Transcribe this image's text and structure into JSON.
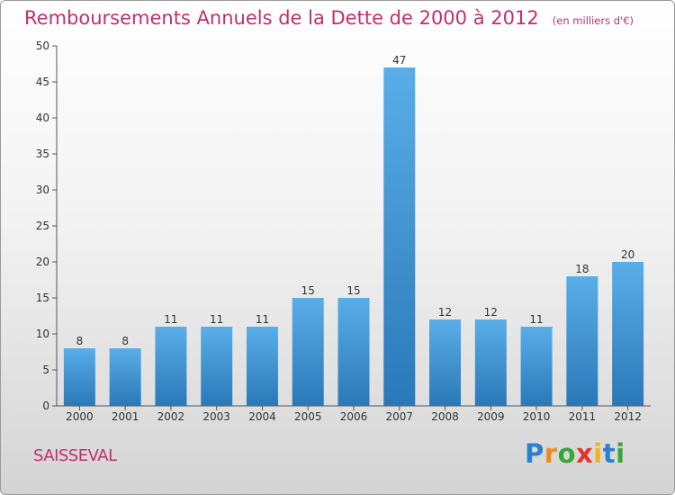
{
  "header": {
    "title": "Remboursements Annuels de la Dette de 2000 à 2012",
    "unit": "(en milliers d'€)"
  },
  "footer": {
    "place": "SAISSEVAL",
    "logo": [
      "P",
      "r",
      "o",
      "x",
      "i",
      "t",
      "i"
    ]
  },
  "chart_data": {
    "type": "bar",
    "title": "Remboursements Annuels de la Dette de 2000 à 2012",
    "xlabel": "",
    "ylabel": "",
    "categories": [
      "2000",
      "2001",
      "2002",
      "2003",
      "2004",
      "2005",
      "2006",
      "2007",
      "2008",
      "2009",
      "2010",
      "2011",
      "2012"
    ],
    "values": [
      8,
      8,
      11,
      11,
      11,
      15,
      15,
      47,
      12,
      12,
      11,
      18,
      20
    ],
    "ylim": [
      0,
      50
    ],
    "yticks": [
      0,
      5,
      10,
      15,
      20,
      25,
      30,
      35,
      40,
      45,
      50
    ],
    "grid": false,
    "colors": {
      "bar_light": "#5aaee8",
      "bar_dark": "#2a78b8",
      "title": "#c0306a",
      "axis": "#555555"
    }
  }
}
